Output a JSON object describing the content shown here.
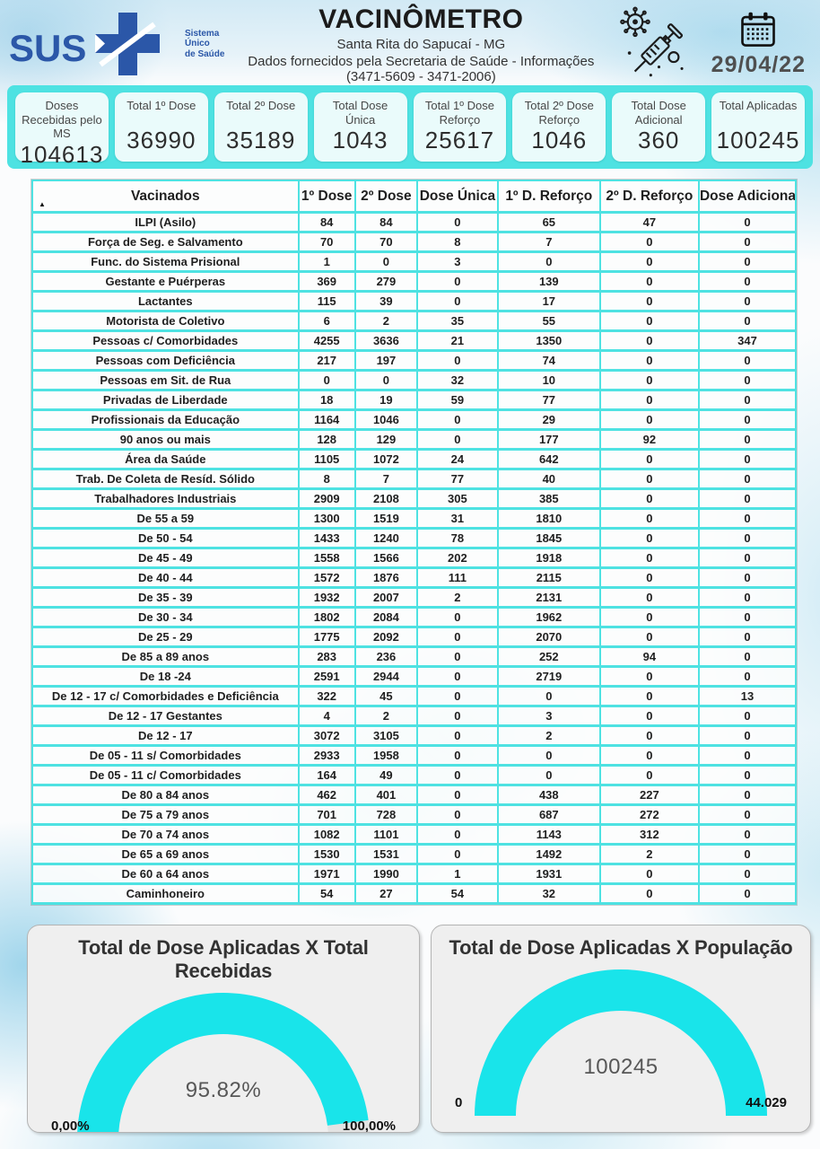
{
  "colors": {
    "accent_cyan": "#4EE2E2",
    "gauge_cyan": "#19E4EA",
    "sus_blue": "#2B57A8",
    "panel_gray": "#EFEFEF"
  },
  "header": {
    "logo_text": "SUS",
    "logo_subtitle_lines": [
      "Sistema",
      "Único",
      "de Saúde"
    ],
    "title": "VACINÔMETRO",
    "subtitle": "Santa Rita do Sapucaí - MG",
    "info_line": "Dados fornecidos pela Secretaria de Saúde - Informações (3471-5609 - 3471-2006)",
    "date": "29/04/22"
  },
  "icons": {
    "sus_logo": "sus-cross-logo",
    "virus_syringe": "virus-syringe-icon",
    "calendar": "calendar-icon",
    "sort_indicator": "▲"
  },
  "summary_cards": [
    {
      "label": "Doses Recebidas pelo MS",
      "value": "104613"
    },
    {
      "label": "Total 1º Dose",
      "value": "36990"
    },
    {
      "label": "Total 2º Dose",
      "value": "35189"
    },
    {
      "label": "Total Dose Única",
      "value": "1043"
    },
    {
      "label": "Total 1º Dose Reforço",
      "value": "25617"
    },
    {
      "label": "Total 2º Dose Reforço",
      "value": "1046"
    },
    {
      "label": "Total Dose Adicional",
      "value": "360"
    },
    {
      "label": "Total Aplicadas",
      "value": "100245"
    }
  ],
  "chart_data": [
    {
      "type": "table",
      "title": "Vacinados",
      "columns": [
        "Vacinados",
        "1º Dose",
        "2º Dose",
        "Dose Única",
        "1º  D. Reforço",
        "2º  D. Reforço",
        "Dose Adicional"
      ],
      "rows": [
        [
          "ILPI (Asilo)",
          84,
          84,
          0,
          65,
          47,
          0
        ],
        [
          "Força de Seg. e Salvamento",
          70,
          70,
          8,
          7,
          0,
          0
        ],
        [
          "Func. do Sistema Prisional",
          1,
          0,
          3,
          0,
          0,
          0
        ],
        [
          "Gestante e Puérperas",
          369,
          279,
          0,
          139,
          0,
          0
        ],
        [
          "Lactantes",
          115,
          39,
          0,
          17,
          0,
          0
        ],
        [
          "Motorista de Coletivo",
          6,
          2,
          35,
          55,
          0,
          0
        ],
        [
          "Pessoas c/ Comorbidades",
          4255,
          3636,
          21,
          1350,
          0,
          347
        ],
        [
          "Pessoas com Deficiência",
          217,
          197,
          0,
          74,
          0,
          0
        ],
        [
          "Pessoas em Sit. de Rua",
          0,
          0,
          32,
          10,
          0,
          0
        ],
        [
          "Privadas de Liberdade",
          18,
          19,
          59,
          77,
          0,
          0
        ],
        [
          "Profissionais da Educação",
          1164,
          1046,
          0,
          29,
          0,
          0
        ],
        [
          "90 anos ou mais",
          128,
          129,
          0,
          177,
          92,
          0
        ],
        [
          "Área da Saúde",
          1105,
          1072,
          24,
          642,
          0,
          0
        ],
        [
          "Trab. De Coleta de Resíd. Sólido",
          8,
          7,
          77,
          40,
          0,
          0
        ],
        [
          "Trabalhadores Industriais",
          2909,
          2108,
          305,
          385,
          0,
          0
        ],
        [
          "De 55 a 59",
          1300,
          1519,
          31,
          1810,
          0,
          0
        ],
        [
          "De 50 - 54",
          1433,
          1240,
          78,
          1845,
          0,
          0
        ],
        [
          "De 45 - 49",
          1558,
          1566,
          202,
          1918,
          0,
          0
        ],
        [
          "De 40 - 44",
          1572,
          1876,
          111,
          2115,
          0,
          0
        ],
        [
          "De 35 - 39",
          1932,
          2007,
          2,
          2131,
          0,
          0
        ],
        [
          "De 30 - 34",
          1802,
          2084,
          0,
          1962,
          0,
          0
        ],
        [
          "De 25 - 29",
          1775,
          2092,
          0,
          2070,
          0,
          0
        ],
        [
          "De 85 a 89 anos",
          283,
          236,
          0,
          252,
          94,
          0
        ],
        [
          "De 18 -24",
          2591,
          2944,
          0,
          2719,
          0,
          0
        ],
        [
          "De 12 - 17 c/ Comorbidades e Deficiência",
          322,
          45,
          0,
          0,
          0,
          13
        ],
        [
          "De 12 - 17 Gestantes",
          4,
          2,
          0,
          3,
          0,
          0
        ],
        [
          "De 12 - 17",
          3072,
          3105,
          0,
          2,
          0,
          0
        ],
        [
          "De 05 - 11 s/ Comorbidades",
          2933,
          1958,
          0,
          0,
          0,
          0
        ],
        [
          "De 05 - 11 c/ Comorbidades",
          164,
          49,
          0,
          0,
          0,
          0
        ],
        [
          "De 80 a 84 anos",
          462,
          401,
          0,
          438,
          227,
          0
        ],
        [
          "De 75 a 79 anos",
          701,
          728,
          0,
          687,
          272,
          0
        ],
        [
          "De 70 a 74 anos",
          1082,
          1101,
          0,
          1143,
          312,
          0
        ],
        [
          "De 65 a 69 anos",
          1530,
          1531,
          0,
          1492,
          2,
          0
        ],
        [
          "De 60 a 64 anos",
          1971,
          1990,
          1,
          1931,
          0,
          0
        ],
        [
          "Caminhoneiro",
          54,
          27,
          54,
          32,
          0,
          0
        ]
      ]
    },
    {
      "type": "gauge",
      "title": "Total de Dose Aplicadas X Total Recebidas",
      "value_label": "95.82%",
      "fill_pct": 95.82,
      "min_label": "0,00%",
      "max_label": "100,00%",
      "range": [
        0,
        100
      ]
    },
    {
      "type": "gauge",
      "title": "Total de Dose Aplicadas X População",
      "value_label": "100245",
      "value": 100245,
      "fill_pct": 100,
      "min_label": "0",
      "max_label": "44.029",
      "range": [
        0,
        44029
      ]
    }
  ]
}
